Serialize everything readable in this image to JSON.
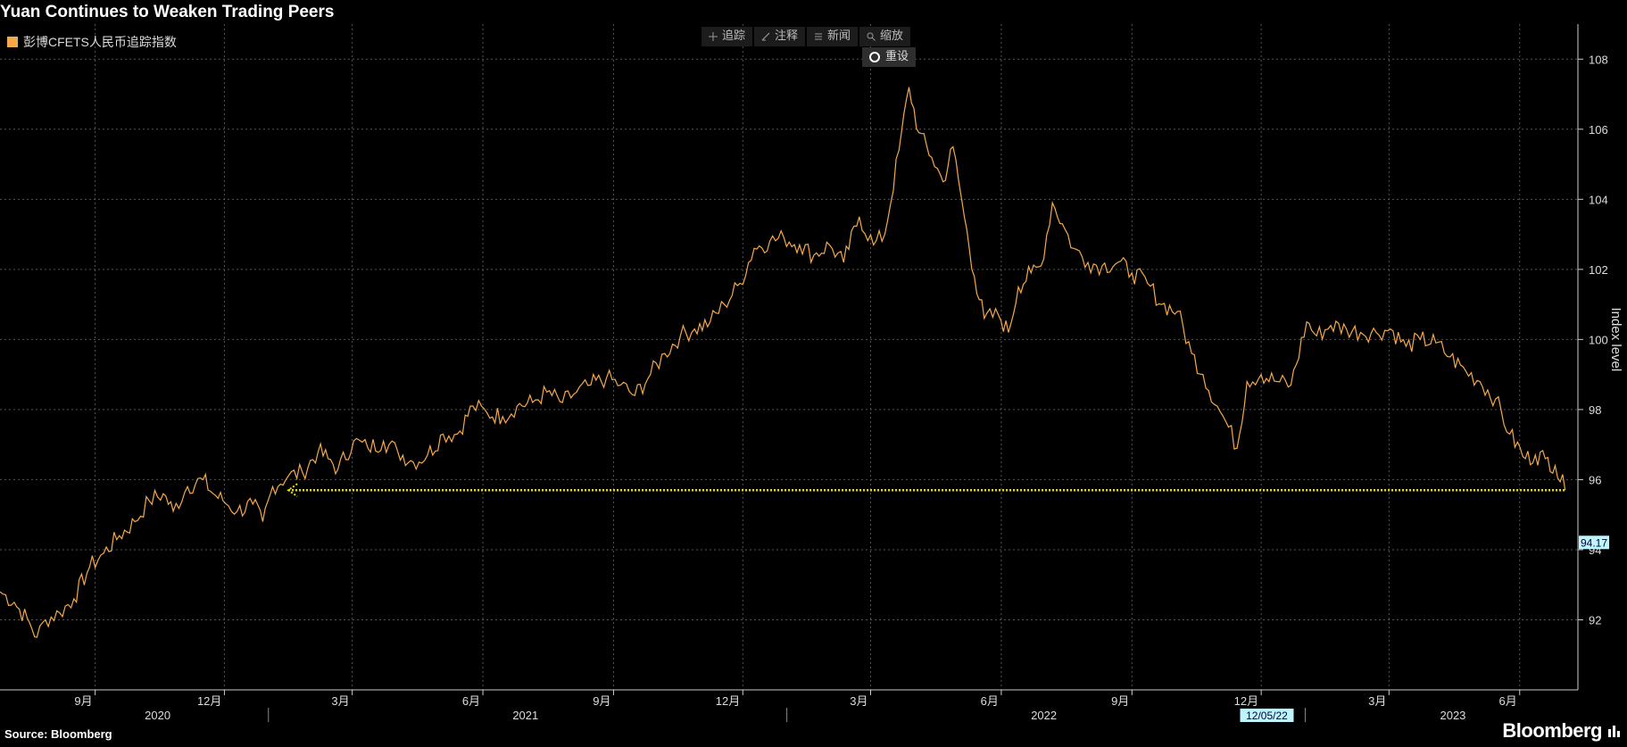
{
  "title": "Yuan Continues to Weaken Trading Peers",
  "legend": {
    "label": "彭博CFETS人民币追踪指数",
    "color": "#f5a94b"
  },
  "toolbar": {
    "items": [
      {
        "label": "追踪",
        "icon": "crosshair-icon"
      },
      {
        "label": "注释",
        "icon": "pencil-icon"
      },
      {
        "label": "新闻",
        "icon": "news-icon"
      },
      {
        "label": "缩放",
        "icon": "magnifier-icon"
      }
    ],
    "reset_label": "重设"
  },
  "source": "Source: Bloomberg",
  "brand": "Bloomberg",
  "chart_data": {
    "type": "line",
    "ylabel": "Index level",
    "ylim": [
      90,
      109
    ],
    "yticks": [
      92,
      94,
      96,
      98,
      100,
      102,
      104,
      106,
      108
    ],
    "grid": true,
    "series": [
      {
        "name": "彭博CFETS人民币追踪指数",
        "color": "#f5a94b",
        "points": [
          [
            "2020-06-26",
            92.8
          ],
          [
            "2020-07-06",
            92.5
          ],
          [
            "2020-07-17",
            91.9
          ],
          [
            "2020-07-22",
            91.5
          ],
          [
            "2020-07-28",
            92.0
          ],
          [
            "2020-08-07",
            92.2
          ],
          [
            "2020-08-17",
            92.6
          ],
          [
            "2020-08-28",
            93.5
          ],
          [
            "2020-09-07",
            93.9
          ],
          [
            "2020-09-18",
            94.4
          ],
          [
            "2020-09-29",
            94.8
          ],
          [
            "2020-10-09",
            95.4
          ],
          [
            "2020-10-19",
            95.6
          ],
          [
            "2020-10-26",
            95.1
          ],
          [
            "2020-11-05",
            95.8
          ],
          [
            "2020-11-16",
            96.0
          ],
          [
            "2020-11-23",
            95.6
          ],
          [
            "2020-11-30",
            95.4
          ],
          [
            "2020-12-10",
            95.1
          ],
          [
            "2020-12-21",
            95.3
          ],
          [
            "2020-12-28",
            94.8
          ],
          [
            "2021-01-04",
            95.8
          ],
          [
            "2021-01-15",
            96.1
          ],
          [
            "2021-01-25",
            96.2
          ],
          [
            "2021-02-05",
            96.8
          ],
          [
            "2021-02-12",
            96.6
          ],
          [
            "2021-02-19",
            96.3
          ],
          [
            "2021-03-02",
            97.1
          ],
          [
            "2021-03-12",
            96.9
          ],
          [
            "2021-03-23",
            97.1
          ],
          [
            "2021-04-02",
            96.8
          ],
          [
            "2021-04-13",
            96.5
          ],
          [
            "2021-04-23",
            96.7
          ],
          [
            "2021-05-04",
            97.3
          ],
          [
            "2021-05-14",
            97.3
          ],
          [
            "2021-05-25",
            98.1
          ],
          [
            "2021-06-04",
            97.9
          ],
          [
            "2021-06-15",
            97.8
          ],
          [
            "2021-06-25",
            98.1
          ],
          [
            "2021-07-06",
            98.2
          ],
          [
            "2021-07-16",
            98.5
          ],
          [
            "2021-07-27",
            98.2
          ],
          [
            "2021-08-06",
            98.5
          ],
          [
            "2021-08-16",
            98.7
          ],
          [
            "2021-08-27",
            98.9
          ],
          [
            "2021-09-06",
            98.7
          ],
          [
            "2021-09-16",
            98.4
          ],
          [
            "2021-09-27",
            99.0
          ],
          [
            "2021-10-07",
            99.6
          ],
          [
            "2021-10-18",
            100.1
          ],
          [
            "2021-10-28",
            100.3
          ],
          [
            "2021-11-08",
            100.5
          ],
          [
            "2021-11-18",
            101.0
          ],
          [
            "2021-11-29",
            101.6
          ],
          [
            "2021-12-09",
            102.6
          ],
          [
            "2021-12-20",
            102.8
          ],
          [
            "2021-12-30",
            102.9
          ],
          [
            "2022-01-10",
            102.7
          ],
          [
            "2022-01-20",
            102.4
          ],
          [
            "2022-01-31",
            102.7
          ],
          [
            "2022-02-10",
            102.2
          ],
          [
            "2022-02-21",
            103.5
          ],
          [
            "2022-03-03",
            102.7
          ],
          [
            "2022-03-11",
            103.0
          ],
          [
            "2022-03-21",
            105.4
          ],
          [
            "2022-03-28",
            107.2
          ],
          [
            "2022-04-04",
            105.9
          ],
          [
            "2022-04-13",
            105.2
          ],
          [
            "2022-04-21",
            104.5
          ],
          [
            "2022-04-28",
            105.5
          ],
          [
            "2022-05-06",
            103.5
          ],
          [
            "2022-05-13",
            101.8
          ],
          [
            "2022-05-20",
            100.6
          ],
          [
            "2022-05-30",
            100.7
          ],
          [
            "2022-06-06",
            100.2
          ],
          [
            "2022-06-13",
            101.5
          ],
          [
            "2022-06-22",
            101.9
          ],
          [
            "2022-06-29",
            102.1
          ],
          [
            "2022-07-07",
            103.9
          ],
          [
            "2022-07-14",
            103.3
          ],
          [
            "2022-07-22",
            102.6
          ],
          [
            "2022-08-01",
            102.2
          ],
          [
            "2022-08-11",
            102.1
          ],
          [
            "2022-08-22",
            102.2
          ],
          [
            "2022-09-01",
            101.9
          ],
          [
            "2022-09-12",
            101.6
          ],
          [
            "2022-09-22",
            101.0
          ],
          [
            "2022-10-03",
            100.8
          ],
          [
            "2022-10-13",
            99.6
          ],
          [
            "2022-10-21",
            99.0
          ],
          [
            "2022-10-31",
            98.1
          ],
          [
            "2022-11-08",
            97.5
          ],
          [
            "2022-11-14",
            96.9
          ],
          [
            "2022-11-21",
            98.8
          ],
          [
            "2022-12-01",
            99.0
          ],
          [
            "2022-12-12",
            98.8
          ],
          [
            "2022-12-22",
            98.7
          ],
          [
            "2023-01-02",
            100.5
          ],
          [
            "2023-01-09",
            100.1
          ],
          [
            "2023-01-19",
            100.4
          ],
          [
            "2023-01-30",
            100.3
          ],
          [
            "2023-02-09",
            100.2
          ],
          [
            "2023-02-20",
            100.2
          ],
          [
            "2023-03-02",
            100.3
          ],
          [
            "2023-03-13",
            99.8
          ],
          [
            "2023-03-23",
            100.0
          ],
          [
            "2023-04-03",
            99.9
          ],
          [
            "2023-04-13",
            99.5
          ],
          [
            "2023-04-24",
            99.1
          ],
          [
            "2023-05-04",
            98.8
          ],
          [
            "2023-05-15",
            98.3
          ],
          [
            "2023-05-25",
            97.3
          ],
          [
            "2023-06-05",
            96.6
          ],
          [
            "2023-06-12",
            96.7
          ],
          [
            "2023-06-19",
            96.6
          ],
          [
            "2023-06-26",
            96.4
          ],
          [
            "2023-07-03",
            95.7
          ]
        ]
      }
    ],
    "annotation_line": {
      "value": 95.7,
      "x_start": "2021-01-15",
      "x_end": "2023-07-03",
      "color": "#e8e000"
    },
    "x_ticks": [
      {
        "date": "2020-09-01",
        "label": "9月"
      },
      {
        "date": "2020-12-01",
        "label": "12月"
      },
      {
        "date": "2021-03-01",
        "label": "3月"
      },
      {
        "date": "2021-06-01",
        "label": "6月"
      },
      {
        "date": "2021-09-01",
        "label": "9月"
      },
      {
        "date": "2021-12-01",
        "label": "12月"
      },
      {
        "date": "2022-03-01",
        "label": "3月"
      },
      {
        "date": "2022-06-01",
        "label": "6月"
      },
      {
        "date": "2022-09-01",
        "label": "9月"
      },
      {
        "date": "2022-12-01",
        "label": "12月"
      },
      {
        "date": "2023-03-01",
        "label": "3月"
      },
      {
        "date": "2023-06-01",
        "label": "6月"
      }
    ],
    "year_labels": [
      {
        "year": "2020",
        "date": "2020-10-15"
      },
      {
        "year": "2021",
        "date": "2021-07-01"
      },
      {
        "year": "2022",
        "date": "2022-07-01"
      },
      {
        "year": "2023",
        "date": "2023-04-15"
      }
    ],
    "x_range": [
      "2020-06-26",
      "2023-07-12"
    ],
    "cursor_value_label": "94.17",
    "cursor_date_label": "12/05/22"
  }
}
